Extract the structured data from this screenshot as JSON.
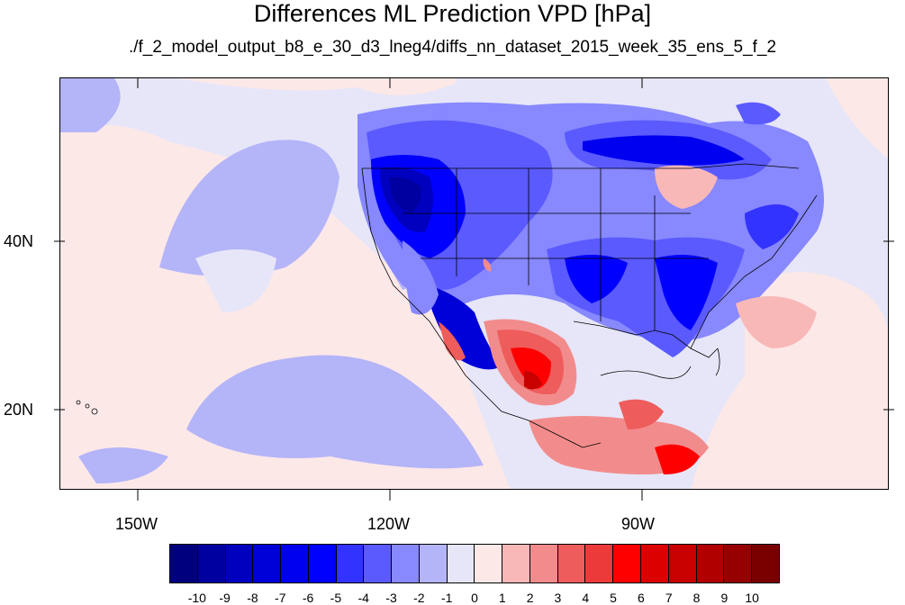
{
  "title": "Differences ML Prediction VPD [hPa]",
  "subtitle": "./f_2_model_output_b8_e_30_d3_lneg4/diffs_nn_dataset_2015_week_35_ens_5_f_2",
  "axes": {
    "lon_labels": [
      "150W",
      "120W",
      "90W"
    ],
    "lat_labels": [
      "40N",
      "20N"
    ]
  },
  "colorbar": {
    "labels": [
      "-10",
      "-9",
      "-8",
      "-7",
      "-6",
      "-5",
      "-4",
      "-3",
      "-2",
      "-1",
      "0",
      "1",
      "2",
      "3",
      "4",
      "5",
      "6",
      "7",
      "8",
      "9",
      "10"
    ],
    "colors": [
      "#00007f",
      "#0000a0",
      "#0000be",
      "#0000d8",
      "#0000f0",
      "#0000ff",
      "#3333ff",
      "#5a5aff",
      "#8888ff",
      "#b4b4f8",
      "#e6e6f8",
      "#fde8e8",
      "#f8b8b8",
      "#f28c8c",
      "#ee5c5c",
      "#ec3a3a",
      "#ff0000",
      "#dd0000",
      "#c80000",
      "#b00000",
      "#960000",
      "#7a0000"
    ]
  }
}
